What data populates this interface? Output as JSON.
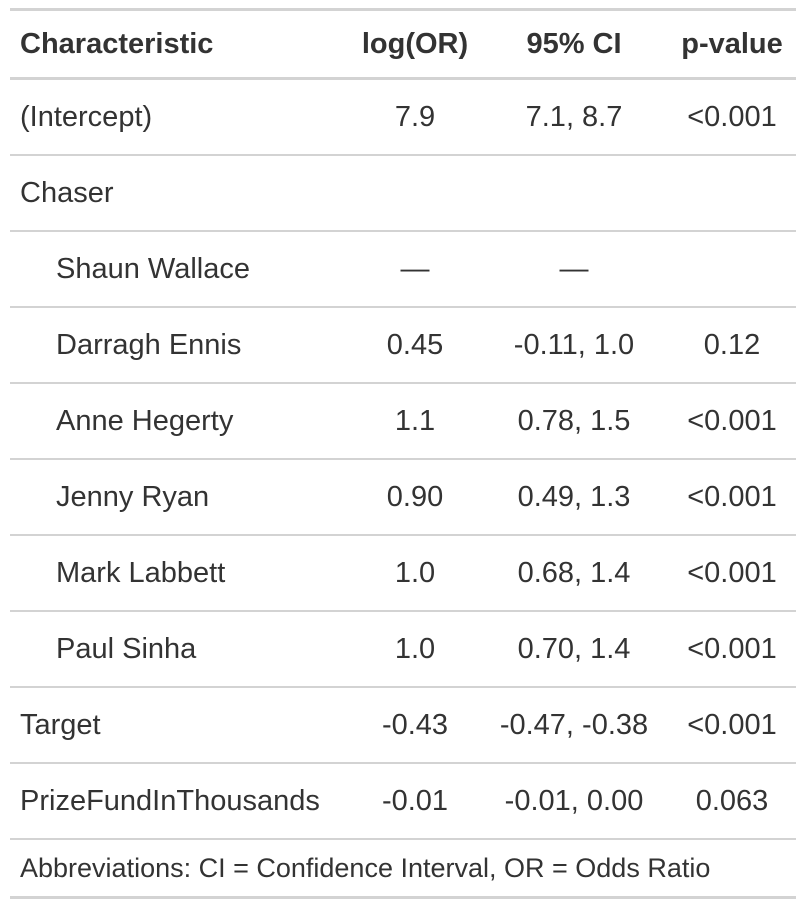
{
  "table": {
    "columns": [
      "Characteristic",
      "log(OR)",
      "95% CI",
      "p-value"
    ],
    "rows": [
      {
        "label": "(Intercept)",
        "cells": [
          "7.9",
          "7.1, 8.7",
          "<0.001"
        ]
      },
      {
        "label": "Chaser",
        "levels": [
          {
            "label": "Shaun Wallace",
            "cells": [
              "—",
              "—"
            ]
          },
          {
            "label": "Darragh Ennis",
            "cells": [
              "0.45",
              "-0.11, 1.0",
              "0.12"
            ]
          },
          {
            "label": "Anne Hegerty",
            "cells": [
              "1.1",
              "0.78, 1.5",
              "<0.001"
            ]
          },
          {
            "label": "Jenny Ryan",
            "cells": [
              "0.90",
              "0.49, 1.3",
              "<0.001"
            ]
          },
          {
            "label": "Mark Labbett",
            "cells": [
              "1.0",
              "0.68, 1.4",
              "<0.001"
            ]
          },
          {
            "label": "Paul Sinha",
            "cells": [
              "1.0",
              "0.70, 1.4",
              "<0.001"
            ]
          }
        ]
      },
      {
        "label": "Target",
        "cells": [
          "-0.43",
          "-0.47, -0.38",
          "<0.001"
        ]
      },
      {
        "label": "PrizeFundInThousands",
        "cells": [
          "-0.01",
          "-0.01, 0.00",
          "0.063"
        ]
      }
    ],
    "footnote": "Abbreviations: CI = Confidence Interval, OR = Odds Ratio"
  }
}
